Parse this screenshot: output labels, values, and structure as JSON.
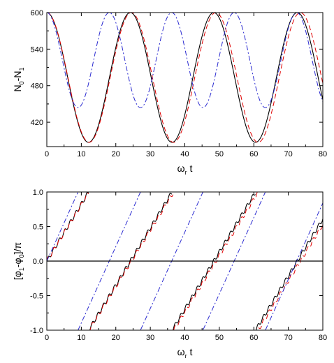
{
  "chart_data": [
    {
      "type": "line",
      "xlabel": "ω",
      "xlabel_sub": "r",
      "xlabel_tail": " t",
      "ylabel": "N",
      "ylabel_sub0": "0",
      "ylabel_mid": "-N",
      "ylabel_sub1": "1",
      "xlim": [
        0,
        80
      ],
      "ylim": [
        380,
        600
      ],
      "xticks": [
        "0",
        "10",
        "20",
        "30",
        "40",
        "50",
        "60",
        "70",
        "80"
      ],
      "yticks": [
        "420",
        "480",
        "540",
        "600"
      ],
      "ytick_values": [
        420,
        480,
        540,
        600
      ],
      "grid": false,
      "series": [
        {
          "style": "solid",
          "color": "#000000",
          "kind": "cos",
          "min": 387,
          "max": 600,
          "period": 24.2
        },
        {
          "style": "dashed",
          "color": "#e00000",
          "kind": "cos",
          "min": 387,
          "max": 600,
          "period": 24.5
        },
        {
          "style": "dashdot",
          "color": "#2a2ad0",
          "kind": "cos",
          "min": 444,
          "max": 600,
          "period": 18.1
        }
      ]
    },
    {
      "type": "line",
      "xlabel": "ω",
      "xlabel_sub": "r",
      "xlabel_tail": " t",
      "ylabel": "[φ",
      "ylabel_sub0": "1",
      "ylabel_mid": "-φ",
      "ylabel_sub1": "0",
      "ylabel_tail": "]/π",
      "xlim": [
        0,
        80
      ],
      "ylim": [
        -1.0,
        1.0
      ],
      "xticks": [
        "0",
        "10",
        "20",
        "30",
        "40",
        "50",
        "60",
        "70",
        "80"
      ],
      "yticks": [
        "-1.0",
        "-0.5",
        "0.0",
        "0.5",
        "1.0"
      ],
      "ytick_values": [
        -1.0,
        -0.5,
        0.0,
        0.5,
        1.0
      ],
      "hline": 0.0,
      "grid": false,
      "series": [
        {
          "style": "solid",
          "color": "#000000",
          "kind": "wrap",
          "period": 24.2,
          "wiggle": 0.03
        },
        {
          "style": "dashed",
          "color": "#e00000",
          "kind": "wrap",
          "period": 24.5,
          "wiggle": 0.03
        },
        {
          "style": "dashdot",
          "color": "#2a2ad0",
          "kind": "wrap",
          "period": 18.1,
          "wiggle": 0.0
        }
      ]
    }
  ]
}
